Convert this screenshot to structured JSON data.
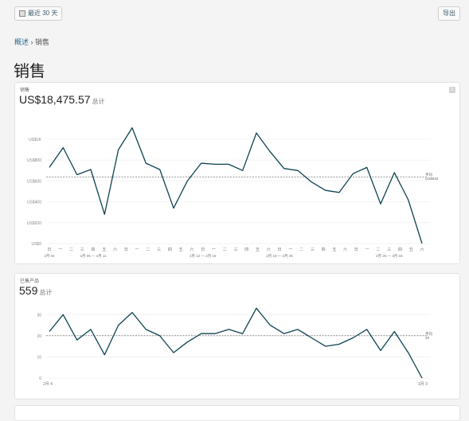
{
  "toolbar": {
    "date_range_label": "最近 30 天",
    "export_label": "导出"
  },
  "breadcrumb": {
    "parent": "概述",
    "separator": "›",
    "current": "销售"
  },
  "page_title": "销售",
  "sales_card": {
    "label": "销售",
    "value": "US$18,475.57",
    "value_suffix": "总计",
    "average_label": "平均",
    "average_value": "US$640"
  },
  "items_card": {
    "label": "已售产品",
    "value": "559",
    "value_suffix": "总计",
    "average_label": "平均",
    "average_value": "20"
  },
  "chart_data": [
    {
      "type": "line",
      "title": "销售",
      "ylim": [
        0,
        1000
      ],
      "yticks": [
        "US$0",
        "US$200",
        "US$400",
        "US$600",
        "US$800",
        "US$1K"
      ],
      "average": 640,
      "weekday_labels": [
        "日",
        "一",
        "二",
        "三",
        "四",
        "五",
        "六",
        "日",
        "一",
        "二",
        "三",
        "四",
        "五",
        "六",
        "日",
        "一",
        "二",
        "三",
        "四",
        "五",
        "六",
        "日",
        "一",
        "二",
        "三",
        "四",
        "五",
        "六",
        "日",
        "一",
        "二",
        "三",
        "四",
        "五",
        "六"
      ],
      "week_labels": [
        "2月 04",
        "2月 05 — 2月 11",
        "2月 12 — 2月 18",
        "2月 19 — 2月 25",
        "2月 26 — 3月 03"
      ],
      "series": [
        {
          "values": [
            730,
            920,
            660,
            710,
            280,
            900,
            1110,
            770,
            710,
            340,
            600,
            770,
            760,
            760,
            700,
            1060,
            880,
            720,
            700,
            590,
            510,
            490,
            670,
            730,
            380,
            680,
            420,
            0
          ]
        }
      ]
    },
    {
      "type": "line",
      "title": "已售产品",
      "ylim": [
        0,
        35
      ],
      "yticks": [
        "0",
        "10",
        "20",
        "30"
      ],
      "average": 20,
      "x_labels": [
        "2月 4",
        "3月 3"
      ],
      "series": [
        {
          "values": [
            22,
            30,
            18,
            23,
            11,
            25,
            31,
            23,
            20,
            12,
            17,
            21,
            21,
            23,
            21,
            33,
            25,
            21,
            23,
            19,
            15,
            16,
            19,
            23,
            13,
            22,
            12,
            0
          ]
        }
      ]
    }
  ],
  "colors": {
    "line": "#0e4352",
    "grid": "#ececec",
    "average": "#555555",
    "link": "#2a6b8e"
  }
}
